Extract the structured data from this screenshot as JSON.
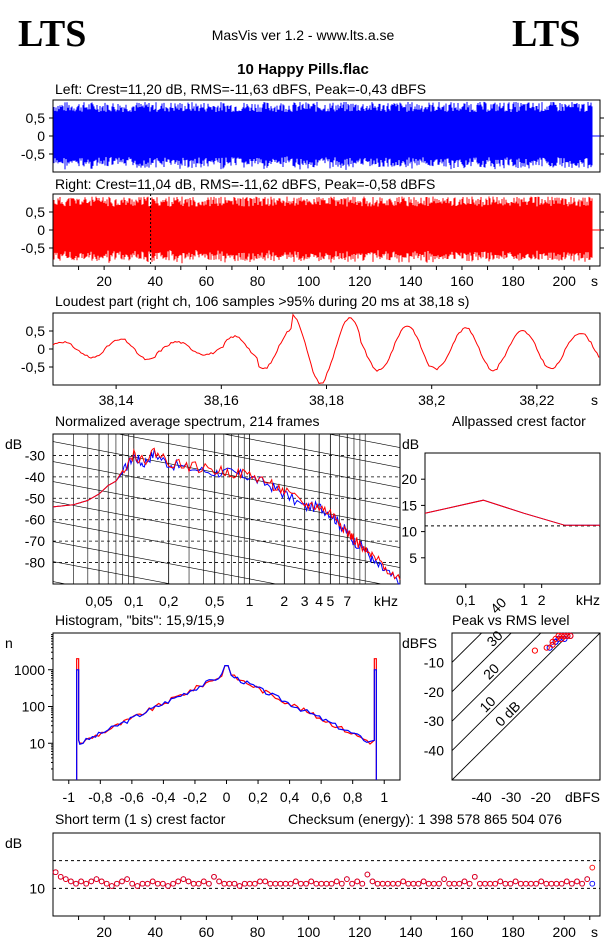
{
  "header": {
    "logo_left": "LTS",
    "logo_right": "LTS",
    "app_title": "MasVis ver 1.2 - www.lts.a.se",
    "file_title": "10 Happy Pills.flac"
  },
  "colors": {
    "left": "#0000ff",
    "right": "#ff0000",
    "grid": "#000000"
  },
  "chart_data": [
    {
      "type": "area",
      "title": "Left: Crest=11,20 dB, RMS=-11,63 dBFS, Peak=-0,43 dBFS",
      "channel": "left",
      "yticks": [
        "0,5",
        "0",
        "-0,5"
      ],
      "ylim": [
        -1,
        1
      ],
      "xlim": [
        0,
        214
      ],
      "peak_amplitude": 0.95
    },
    {
      "type": "area",
      "title": "Right: Crest=11,04 dB, RMS=-11,62 dBFS, Peak=-0,58 dBFS",
      "channel": "right",
      "yticks": [
        "0,5",
        "0",
        "-0,5"
      ],
      "ylim": [
        -1,
        1
      ],
      "xlim": [
        0,
        214
      ],
      "xticks": [
        "20",
        "40",
        "60",
        "80",
        "100",
        "120",
        "140",
        "160",
        "180",
        "200"
      ],
      "xunit": "s",
      "marker_x": 38.18,
      "peak_amplitude": 0.93
    },
    {
      "type": "line",
      "title": "Loudest part (right ch, 106 samples >95% during 20 ms at 38,18 s)",
      "yticks": [
        "0,5",
        "0",
        "-0,5"
      ],
      "ylim": [
        -1,
        1
      ],
      "xlim": [
        38.128,
        38.232
      ],
      "xticks": [
        "38,14",
        "38,16",
        "38,18",
        "38,2",
        "38,22"
      ],
      "xunit": "s",
      "cycles": 9.5,
      "amplitude_envelope": [
        0.2,
        0.25,
        0.3,
        0.2,
        0.15,
        0.35,
        0.55,
        0.95,
        0.85,
        0.6,
        0.65,
        0.55,
        0.6,
        0.5,
        0.55,
        0.45
      ]
    },
    {
      "type": "line",
      "title": "Normalized average spectrum, 214 frames",
      "ylabel": "dB",
      "yticks": [
        "-30",
        "-40",
        "-50",
        "-60",
        "-70",
        "-80"
      ],
      "xticks": [
        "0,05",
        "0,1",
        "0,2",
        "0,5",
        "1",
        "2",
        "3",
        "4",
        "5",
        "7"
      ],
      "xunit": "kHz",
      "xlim": [
        0.02,
        20
      ],
      "ylim": [
        -90,
        -20
      ],
      "series": [
        {
          "channel": "left",
          "x": [
            0.02,
            0.03,
            0.04,
            0.05,
            0.06,
            0.07,
            0.08,
            0.1,
            0.12,
            0.15,
            0.2,
            0.3,
            0.5,
            0.7,
            1,
            1.5,
            2,
            3,
            4,
            5,
            6,
            7,
            8,
            10,
            12,
            15,
            20
          ],
          "y": [
            -54,
            -53,
            -51,
            -48,
            -44,
            -42,
            -38,
            -30,
            -34,
            -29,
            -34,
            -36,
            -38,
            -38,
            -40,
            -44,
            -48,
            -54,
            -54,
            -57,
            -62,
            -66,
            -70,
            -74,
            -80,
            -84,
            -90
          ]
        },
        {
          "channel": "right",
          "x": [
            0.02,
            0.03,
            0.04,
            0.05,
            0.06,
            0.07,
            0.08,
            0.1,
            0.12,
            0.15,
            0.2,
            0.3,
            0.5,
            0.7,
            1,
            1.5,
            2,
            3,
            4,
            5,
            6,
            7,
            8,
            10,
            12,
            15,
            20
          ],
          "y": [
            -54,
            -53,
            -51,
            -48,
            -44,
            -42,
            -37,
            -29,
            -33,
            -28,
            -33,
            -35,
            -37,
            -38,
            -39,
            -43,
            -47,
            -53,
            -54,
            -57,
            -61,
            -66,
            -69,
            -75,
            -78,
            -82,
            -88
          ]
        }
      ]
    },
    {
      "type": "line",
      "title": "Allpassed crest factor",
      "ylabel": "dB",
      "yticks": [
        "20",
        "15",
        "10",
        "5"
      ],
      "ylim": [
        0,
        25
      ],
      "xticks": [
        "0,1",
        "1",
        "2"
      ],
      "xunit": "kHz",
      "xlim": [
        0.02,
        20
      ],
      "series": [
        {
          "channel": "left",
          "x": [
            0.02,
            0.2,
            1,
            5,
            20
          ],
          "y": [
            13.5,
            16,
            13.5,
            11.2,
            11.2
          ]
        },
        {
          "channel": "right",
          "x": [
            0.02,
            0.2,
            1,
            5,
            20
          ],
          "y": [
            13.5,
            16,
            13.5,
            11.2,
            11.2
          ]
        }
      ],
      "reference_level": 11.1
    },
    {
      "type": "line",
      "title": "Histogram, \"bits\": 15,9/15,9",
      "ylabel": "n",
      "yticks": [
        "1000",
        "100",
        "10"
      ],
      "yscale": "log",
      "ylim": [
        1,
        10000
      ],
      "xlim": [
        -1.1,
        1.1
      ],
      "xticks": [
        "-1",
        "-0,8",
        "-0,6",
        "-0,4",
        "-0,2",
        "0",
        "0,2",
        "0,4",
        "0,6",
        "0,8",
        "1"
      ],
      "series": [
        {
          "channel": "left",
          "x": [
            -0.95,
            -0.9,
            -0.6,
            -0.3,
            0,
            0.3,
            0.6,
            0.9,
            0.95
          ],
          "y": [
            1000,
            12,
            30,
            150,
            800,
            150,
            30,
            12,
            1000
          ]
        },
        {
          "channel": "right",
          "x": [
            -0.95,
            -0.9,
            -0.6,
            -0.3,
            0,
            0.3,
            0.6,
            0.9,
            0.95
          ],
          "y": [
            2000,
            12,
            30,
            150,
            800,
            150,
            30,
            12,
            2000
          ]
        }
      ]
    },
    {
      "type": "scatter",
      "title": "Peak vs RMS level",
      "ylabel": "dBFS",
      "xlabel": "dBFS",
      "yticks": [
        "-10",
        "-20",
        "-30",
        "-40"
      ],
      "xticks": [
        "-40",
        "-30",
        "-20"
      ],
      "xlim": [
        -50,
        0
      ],
      "ylim": [
        -50,
        0
      ],
      "diagonal_labels": [
        "40",
        "30",
        "20",
        "10",
        "0 dB"
      ],
      "series": [
        {
          "channel": "left",
          "x": [
            -17,
            -15,
            -14,
            -13,
            -12,
            -11,
            -10,
            -12,
            -15
          ],
          "y": [
            -5,
            -3,
            -2,
            -1,
            -1,
            -1,
            -1,
            -2,
            -3
          ]
        },
        {
          "channel": "right",
          "x": [
            -22,
            -18,
            -16,
            -15,
            -14,
            -13,
            -12,
            -11,
            -10,
            -13,
            -16
          ],
          "y": [
            -6,
            -5,
            -3,
            -2,
            -1,
            -1,
            -1,
            -1,
            -1,
            -2,
            -4
          ]
        }
      ]
    },
    {
      "type": "scatter",
      "title": "Short term (1 s) crest factor",
      "checksum": "Checksum (energy):  1 398 578 865 504 076",
      "ylabel": "dB",
      "yticks": [
        "10"
      ],
      "ylim": [
        4,
        22
      ],
      "reference_levels": [
        16,
        10
      ],
      "xlim": [
        0,
        214
      ],
      "xticks": [
        "20",
        "40",
        "60",
        "80",
        "100",
        "120",
        "140",
        "160",
        "180",
        "200"
      ],
      "xunit": "s",
      "series": [
        {
          "channel": "left",
          "values": [
            13.5,
            12.5,
            12,
            11.5,
            11,
            11.5,
            11,
            11.5,
            12,
            11.5,
            11,
            10.5,
            11,
            11.5,
            12,
            11,
            10.5,
            11,
            11,
            11.5,
            11,
            11,
            10.5,
            11,
            11.5,
            12,
            11.5,
            11,
            11,
            11.5,
            11,
            12.5,
            11.5,
            11,
            11,
            11,
            10.5,
            11,
            11,
            11,
            11.5,
            11.5,
            11,
            11,
            11,
            11,
            11,
            11.5,
            11,
            11,
            11.5,
            11,
            11,
            11,
            11,
            11.5,
            11,
            12,
            11,
            11.5,
            11,
            13,
            11.5,
            11,
            11,
            11,
            11,
            11,
            11.5,
            11,
            11,
            11,
            11.5,
            11,
            11,
            11,
            12,
            11,
            11,
            11,
            11.5,
            11,
            12.5,
            11,
            11,
            11,
            11,
            11.5,
            11,
            11,
            11.5,
            11,
            11,
            11,
            11,
            11.5,
            11,
            11,
            11,
            11,
            11.5,
            11,
            11.5,
            11,
            12,
            11
          ]
        },
        {
          "channel": "right",
          "values": [
            13.5,
            12.5,
            12,
            11.5,
            11,
            11.5,
            11,
            11.5,
            12,
            11.5,
            11,
            10.5,
            11,
            11.5,
            12,
            11,
            10.5,
            11,
            11,
            11.5,
            11,
            11,
            10.5,
            11,
            11.5,
            12,
            11.5,
            11,
            11,
            11.5,
            11,
            12.5,
            11.5,
            11,
            11,
            11,
            10.5,
            11,
            11,
            11,
            11.5,
            11.5,
            11,
            11,
            11,
            11,
            11,
            11.5,
            11,
            11,
            11.5,
            11,
            11,
            11,
            11,
            11.5,
            11,
            12,
            11,
            11.5,
            11,
            13,
            11.5,
            11,
            11,
            11,
            11,
            11,
            11.5,
            11,
            11,
            11,
            11.5,
            11,
            11,
            11,
            12,
            11,
            11,
            11,
            11.5,
            11,
            12.5,
            11,
            11,
            11,
            11,
            11.5,
            11,
            11,
            11.5,
            11,
            11,
            11,
            11,
            11.5,
            11,
            11,
            11,
            11,
            11.5,
            11,
            11.5,
            11,
            12,
            14.5
          ]
        }
      ]
    }
  ]
}
